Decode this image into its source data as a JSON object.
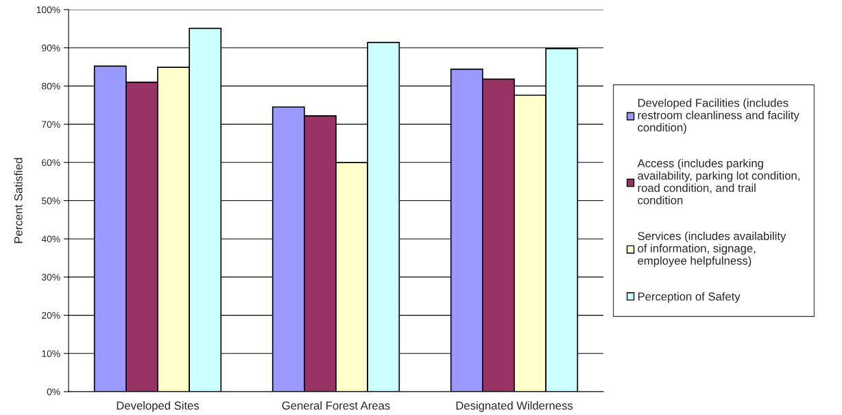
{
  "chart_data": {
    "type": "bar",
    "ylabel": "Percent Satisfied",
    "categories": [
      "Developed Sites",
      "General Forest Areas",
      "Designated Wilderness"
    ],
    "series": [
      {
        "name": "Developed Facilities (includes\nrestroom cleanliness and facility\ncondition)",
        "color": "#9999ff",
        "values": [
          85.2,
          74.5,
          84.4
        ]
      },
      {
        "name": "Access (includes parking\navailability, parking lot condition,\nroad condition, and trail\ncondition",
        "color": "#993366",
        "values": [
          81.0,
          72.2,
          81.8
        ]
      },
      {
        "name": "Services (includes availability\nof information, signage,\nemployee helpfulness)",
        "color": "#ffffcc",
        "values": [
          84.9,
          60.0,
          77.6
        ]
      },
      {
        "name": "Perception of Safety",
        "color": "#ccffff",
        "values": [
          95.1,
          91.4,
          89.8
        ]
      }
    ],
    "ylim": [
      0,
      100
    ],
    "yticks": [
      {
        "value": 0,
        "label": "0%"
      },
      {
        "value": 10,
        "label": "10%"
      },
      {
        "value": 20,
        "label": "20%"
      },
      {
        "value": 30,
        "label": "30%"
      },
      {
        "value": 40,
        "label": "40%"
      },
      {
        "value": 50,
        "label": "50%"
      },
      {
        "value": 60,
        "label": "60%"
      },
      {
        "value": 70,
        "label": "70%"
      },
      {
        "value": 80,
        "label": "80%"
      },
      {
        "value": 90,
        "label": "90%"
      },
      {
        "value": 100,
        "label": "100%"
      }
    ],
    "grid": "y",
    "legend": "right"
  }
}
